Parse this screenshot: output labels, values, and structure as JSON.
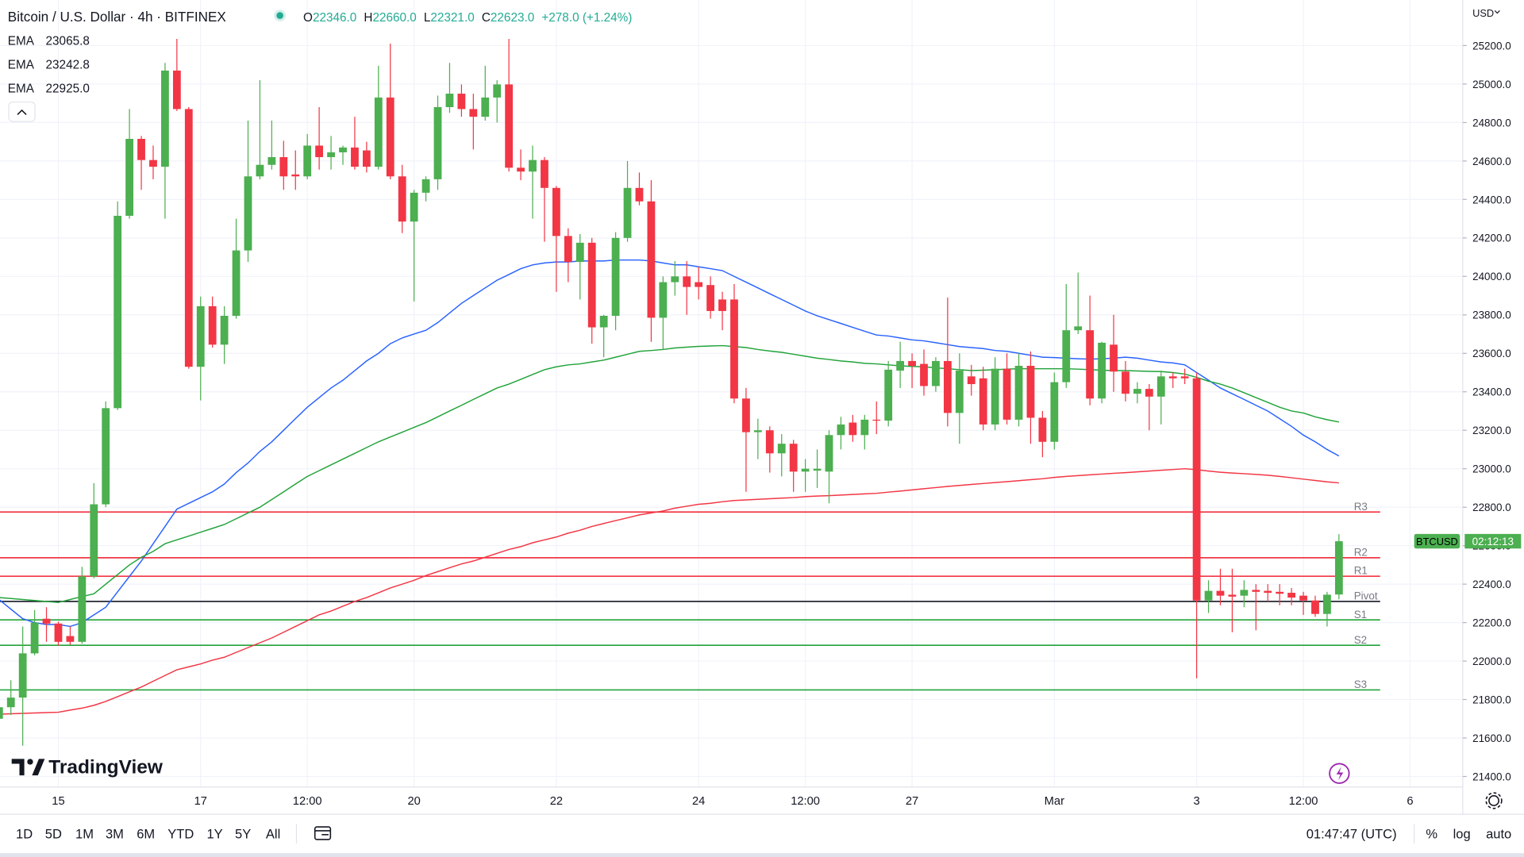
{
  "header": {
    "title": "Bitcoin / U.S. Dollar · 4h · BITFINEX",
    "ohlc": [
      {
        "key": "O",
        "value": "22346.0"
      },
      {
        "key": "H",
        "value": "22660.0"
      },
      {
        "key": "L",
        "value": "22321.0"
      },
      {
        "key": "C",
        "value": "22623.0"
      }
    ],
    "change": "+278.0 (+1.24%)"
  },
  "logo": "TradingView",
  "price_tag": {
    "symbol": "BTCUSD",
    "countdown": "02:12:13"
  },
  "toolbar": {
    "ranges": [
      "1D",
      "5D",
      "1M",
      "3M",
      "6M",
      "YTD",
      "1Y",
      "5Y",
      "All"
    ],
    "clock": "01:47:47 (UTC)",
    "options": [
      "%",
      "log",
      "auto"
    ]
  },
  "chart_data": {
    "type": "candlestick",
    "y_unit": "USD",
    "categories": [
      null,
      null,
      null,
      null,
      null,
      "15",
      null,
      null,
      null,
      null,
      null,
      null,
      null,
      null,
      null,
      null,
      null,
      "17",
      null,
      null,
      null,
      null,
      null,
      null,
      null,
      null,
      "12:00",
      null,
      null,
      null,
      null,
      null,
      null,
      null,
      null,
      "20",
      null,
      null,
      null,
      null,
      null,
      null,
      null,
      null,
      null,
      null,
      null,
      "22",
      null,
      null,
      null,
      null,
      null,
      null,
      null,
      null,
      null,
      null,
      null,
      "24",
      null,
      null,
      null,
      null,
      null,
      null,
      null,
      null,
      "12:00",
      null,
      null,
      null,
      null,
      null,
      null,
      null,
      null,
      "27",
      null,
      null,
      null,
      null,
      null,
      null,
      null,
      null,
      null,
      null,
      null,
      "Mar",
      null,
      null,
      null,
      null,
      null,
      null,
      null,
      null,
      null,
      null,
      null,
      "3",
      null,
      null,
      null,
      null,
      null,
      null,
      null,
      null,
      "12:00",
      null,
      null,
      null,
      null,
      null,
      null,
      null,
      null,
      "6"
    ],
    "series": [
      {
        "name": "BTCUSD",
        "up_color": "#4caf50",
        "down_color": "#f23645",
        "open": [
          21700,
          21760,
          21810,
          22040,
          22220,
          22195,
          22130,
          22100,
          22440,
          22815,
          23315,
          24315,
          24715,
          24605,
          24570,
          25070,
          24870,
          23530,
          23845,
          23645,
          23795,
          24135,
          24520,
          24580,
          24620,
          24530,
          24520,
          24680,
          24620,
          24645,
          24670,
          24655,
          24570,
          24930,
          24520,
          24285,
          24435,
          24505,
          24880,
          24950,
          24870,
          24830,
          24930,
          24998,
          24565,
          24545,
          24605,
          24460,
          24210,
          24075,
          24175,
          23735,
          23795,
          24200,
          24460,
          24390,
          23785,
          23970,
          24000,
          23970,
          23955,
          23880,
          23880,
          23365,
          23190,
          23200,
          23080,
          23130,
          22985,
          22990,
          22985,
          23175,
          23240,
          23175,
          23255,
          23250,
          23510,
          23560,
          23545,
          23430,
          23560,
          23290,
          23480,
          23470,
          23230,
          23520,
          23255,
          23535,
          23265,
          23140,
          23450,
          23720,
          23720,
          23365,
          23645,
          23505,
          23390,
          23415,
          23375,
          23480,
          23480,
          23470,
          22315,
          22365,
          22345,
          22340,
          22370,
          22365,
          22360,
          22355,
          22340,
          22315,
          22245,
          22346,
          null,
          null,
          null,
          null,
          null,
          null
        ],
        "high": [
          21780,
          21900,
          22180,
          22265,
          22280,
          22205,
          22180,
          22490,
          22925,
          23350,
          24390,
          24870,
          24730,
          24680,
          25110,
          25235,
          24880,
          23895,
          23895,
          23845,
          24300,
          24810,
          25020,
          24810,
          24705,
          24655,
          24740,
          24880,
          24730,
          24680,
          24830,
          24700,
          25095,
          25210,
          24580,
          24450,
          24520,
          24940,
          25110,
          24998,
          24950,
          25095,
          25020,
          25235,
          24660,
          24680,
          24620,
          24470,
          24250,
          24220,
          24200,
          23800,
          24230,
          24600,
          24540,
          24500,
          24000,
          24080,
          24080,
          24050,
          24000,
          23920,
          23960,
          23420,
          23260,
          23220,
          23180,
          23150,
          23050,
          23100,
          23200,
          23270,
          23280,
          23280,
          23350,
          23560,
          23660,
          23600,
          23620,
          23580,
          23890,
          23600,
          23540,
          23530,
          23580,
          23600,
          23600,
          23610,
          23300,
          23500,
          23960,
          24020,
          23900,
          23660,
          23800,
          23560,
          23450,
          23440,
          23510,
          23500,
          23520,
          23500,
          22420,
          22480,
          22480,
          22420,
          22400,
          22400,
          22400,
          22380,
          22360,
          22340,
          22360,
          22660,
          null,
          null,
          null,
          null,
          null,
          null
        ],
        "low": [
          21650,
          21720,
          21560,
          22030,
          22100,
          22080,
          22085,
          22090,
          22430,
          22800,
          23305,
          24300,
          24450,
          24505,
          24300,
          24860,
          23520,
          23355,
          23630,
          23545,
          23780,
          24075,
          24505,
          24555,
          24450,
          24450,
          24505,
          24555,
          24555,
          24580,
          24555,
          24540,
          24555,
          24505,
          24225,
          23870,
          24390,
          24450,
          24850,
          24830,
          24660,
          24810,
          24800,
          24545,
          24500,
          24300,
          24180,
          23920,
          23970,
          23880,
          23650,
          23580,
          23720,
          24180,
          24370,
          23660,
          23620,
          23900,
          23800,
          23880,
          23780,
          23720,
          23340,
          22880,
          23050,
          22980,
          22960,
          22880,
          22880,
          22900,
          22820,
          23100,
          23140,
          23100,
          23180,
          23220,
          23420,
          23420,
          23380,
          23400,
          23220,
          23130,
          23380,
          23200,
          23200,
          23230,
          23220,
          23130,
          23060,
          23100,
          23420,
          23700,
          23330,
          23340,
          23400,
          23350,
          23340,
          23200,
          23230,
          23420,
          23440,
          21910,
          22250,
          22290,
          22150,
          22280,
          22160,
          22310,
          22290,
          22290,
          22240,
          22230,
          22180,
          22321,
          null,
          null,
          null,
          null,
          null,
          null
        ],
        "close": [
          21760,
          21810,
          22040,
          22200,
          22195,
          22100,
          22100,
          22440,
          22815,
          23315,
          24315,
          24715,
          24605,
          24570,
          25070,
          24870,
          23530,
          23845,
          23645,
          23795,
          24135,
          24520,
          24580,
          24620,
          24520,
          24520,
          24680,
          24620,
          24645,
          24670,
          24570,
          24570,
          24930,
          24520,
          24285,
          24435,
          24505,
          24880,
          24950,
          24870,
          24830,
          24930,
          24998,
          24565,
          24545,
          24605,
          24460,
          24210,
          24075,
          24175,
          23735,
          23795,
          24200,
          24460,
          24390,
          23785,
          23970,
          24000,
          23945,
          23945,
          23820,
          23820,
          23365,
          23190,
          23200,
          23080,
          23130,
          22985,
          23000,
          23000,
          23175,
          23230,
          23175,
          23255,
          23250,
          23515,
          23560,
          23535,
          23430,
          23560,
          23290,
          23510,
          23440,
          23230,
          23520,
          23255,
          23535,
          23265,
          23140,
          23450,
          23720,
          23740,
          23365,
          23655,
          23505,
          23390,
          23415,
          23375,
          23480,
          23470,
          23470,
          22315,
          22365,
          22340,
          22335,
          22370,
          22360,
          22355,
          22350,
          22330,
          22315,
          22245,
          22345,
          22623,
          null,
          null,
          null,
          null,
          null,
          null
        ]
      }
    ],
    "ema": [
      {
        "name": "EMA",
        "color": "#2962ff",
        "value_label": "23065.8",
        "values": [
          22320,
          22270,
          22220,
          22200,
          22190,
          22190,
          22180,
          22200,
          22240,
          22280,
          22360,
          22440,
          22520,
          22610,
          22700,
          22790,
          22820,
          22850,
          22880,
          22920,
          22980,
          23030,
          23090,
          23140,
          23200,
          23260,
          23320,
          23370,
          23420,
          23460,
          23510,
          23560,
          23600,
          23650,
          23680,
          23700,
          23720,
          23760,
          23810,
          23860,
          23900,
          23940,
          23980,
          24010,
          24040,
          24060,
          24070,
          24075,
          24075,
          24080,
          24080,
          24080,
          24085,
          24085,
          24085,
          24080,
          24070,
          24060,
          24060,
          24050,
          24040,
          24030,
          24000,
          23970,
          23940,
          23910,
          23880,
          23850,
          23820,
          23795,
          23775,
          23755,
          23735,
          23715,
          23695,
          23690,
          23680,
          23670,
          23665,
          23655,
          23645,
          23635,
          23630,
          23625,
          23615,
          23610,
          23600,
          23590,
          23580,
          23578,
          23575,
          23572,
          23570,
          23572,
          23575,
          23580,
          23575,
          23565,
          23555,
          23550,
          23540,
          23500,
          23460,
          23420,
          23390,
          23360,
          23330,
          23300,
          23260,
          23220,
          23175,
          23140,
          23100,
          23066,
          null,
          null,
          null,
          null,
          null,
          null
        ]
      },
      {
        "name": "EMA",
        "color": "#22a33a",
        "value_label": "23242.8",
        "values": [
          22330,
          22325,
          22320,
          22315,
          22310,
          22305,
          22320,
          22335,
          22350,
          22400,
          22450,
          22500,
          22540,
          22570,
          22610,
          22630,
          22650,
          22670,
          22690,
          22710,
          22740,
          22770,
          22800,
          22840,
          22880,
          22920,
          22960,
          22990,
          23020,
          23050,
          23080,
          23110,
          23140,
          23165,
          23190,
          23215,
          23240,
          23270,
          23300,
          23330,
          23360,
          23390,
          23420,
          23440,
          23465,
          23490,
          23515,
          23530,
          23540,
          23545,
          23555,
          23565,
          23580,
          23595,
          23610,
          23615,
          23620,
          23628,
          23632,
          23636,
          23638,
          23640,
          23635,
          23630,
          23620,
          23612,
          23605,
          23595,
          23585,
          23575,
          23568,
          23560,
          23555,
          23548,
          23545,
          23540,
          23535,
          23532,
          23530,
          23525,
          23520,
          23515,
          23510,
          23512,
          23515,
          23518,
          23520,
          23520,
          23520,
          23520,
          23520,
          23518,
          23515,
          23512,
          23510,
          23510,
          23508,
          23506,
          23505,
          23500,
          23492,
          23475,
          23455,
          23440,
          23420,
          23395,
          23370,
          23345,
          23320,
          23300,
          23290,
          23270,
          23255,
          23243,
          null,
          null,
          null,
          null,
          null,
          null
        ]
      },
      {
        "name": "EMA",
        "color": "#f23645",
        "value_label": "22925.0",
        "values": [
          21724,
          21726,
          21728,
          21730,
          21732,
          21734,
          21745,
          21755,
          21770,
          21790,
          21815,
          21840,
          21865,
          21895,
          21925,
          21955,
          21970,
          21985,
          22005,
          22020,
          22045,
          22070,
          22095,
          22120,
          22150,
          22180,
          22210,
          22240,
          22260,
          22285,
          22310,
          22330,
          22355,
          22380,
          22400,
          22420,
          22445,
          22465,
          22485,
          22505,
          22520,
          22540,
          22560,
          22580,
          22595,
          22615,
          22630,
          22645,
          22665,
          22680,
          22700,
          22715,
          22730,
          22745,
          22760,
          22770,
          22780,
          22795,
          22805,
          22815,
          22820,
          22828,
          22835,
          22838,
          22841,
          22844,
          22847,
          22850,
          22855,
          22858,
          22860,
          22863,
          22866,
          22869,
          22872,
          22878,
          22884,
          22890,
          22896,
          22902,
          22908,
          22913,
          22918,
          22923,
          22928,
          22933,
          22938,
          22943,
          22948,
          22955,
          22960,
          22964,
          22968,
          22972,
          22976,
          22980,
          22984,
          22988,
          22992,
          22996,
          23000,
          22995,
          22988,
          22982,
          22978,
          22974,
          22970,
          22966,
          22960,
          22953,
          22946,
          22939,
          22932,
          22926,
          null,
          null,
          null,
          null,
          null,
          null
        ]
      }
    ],
    "levels": [
      {
        "name": "R3",
        "value": 22775,
        "color": "#f23645"
      },
      {
        "name": "R2",
        "value": 22537,
        "color": "#f23645"
      },
      {
        "name": "R1",
        "value": 22441,
        "color": "#f23645"
      },
      {
        "name": "Pivot",
        "value": 22310,
        "color": "#131722"
      },
      {
        "name": "S1",
        "value": 22214,
        "color": "#22a33a"
      },
      {
        "name": "S2",
        "value": 22082,
        "color": "#22a33a"
      },
      {
        "name": "S3",
        "value": 21850,
        "color": "#22a33a"
      }
    ],
    "ylim": [
      21345,
      25437
    ],
    "yticks": [
      {
        "value": 21400,
        "label": "21400.0"
      },
      {
        "value": 21600,
        "label": "21600.0"
      },
      {
        "value": 21800,
        "label": "21800.0"
      },
      {
        "value": 22000,
        "label": "22000.0"
      },
      {
        "value": 22200,
        "label": "22200.0"
      },
      {
        "value": 22400,
        "label": "22400.0"
      },
      {
        "value": 22600,
        "label": "22600.0"
      },
      {
        "value": 22800,
        "label": "22800.0"
      },
      {
        "value": 23000,
        "label": "23000.0"
      },
      {
        "value": 23200,
        "label": "23200.0"
      },
      {
        "value": 23400,
        "label": "23400.0"
      },
      {
        "value": 23600,
        "label": "23600.0"
      },
      {
        "value": 23800,
        "label": "23800.0"
      },
      {
        "value": 24000,
        "label": "24000.0"
      },
      {
        "value": 24200,
        "label": "24200.0"
      },
      {
        "value": 24400,
        "label": "24400.0"
      },
      {
        "value": 24600,
        "label": "24600.0"
      },
      {
        "value": 24800,
        "label": "24800.0"
      },
      {
        "value": 25000,
        "label": "25000.0"
      },
      {
        "value": 25200,
        "label": "25200.0"
      }
    ],
    "grid": true
  }
}
